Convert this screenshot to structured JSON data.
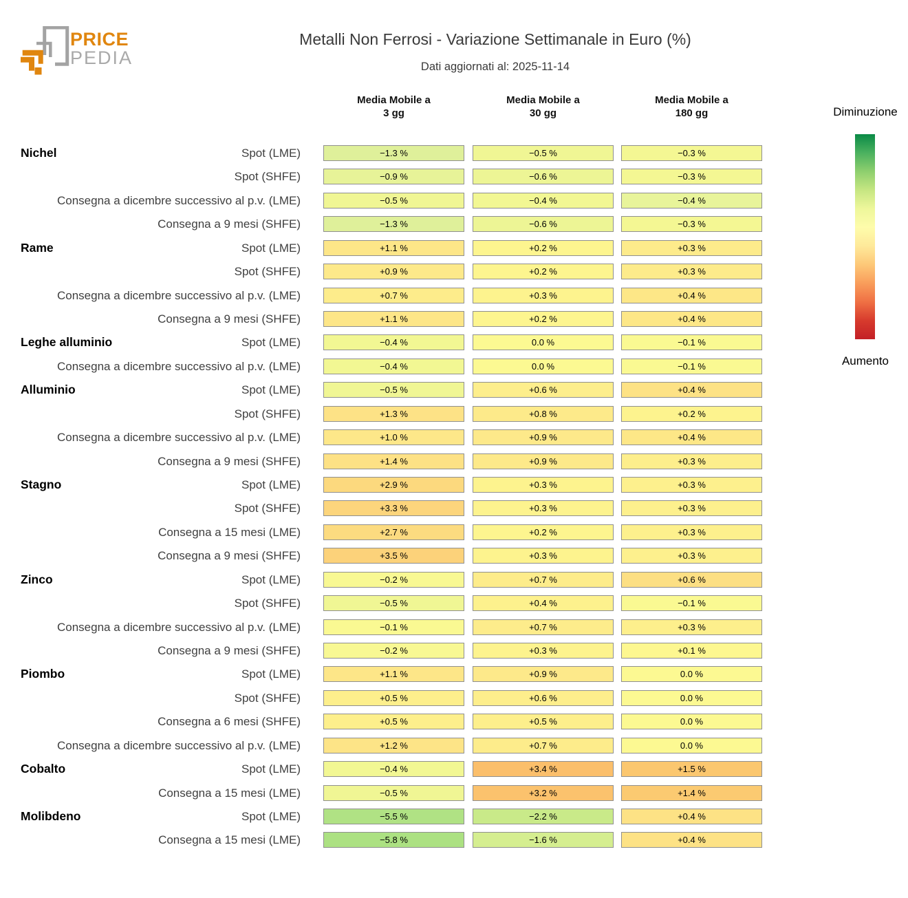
{
  "logo": {
    "brand_top": "PRICE",
    "brand_bottom": "PEDIA",
    "orange": "#e0860f",
    "gray": "#a3a3a3"
  },
  "header": {
    "title": "Metalli Non Ferrosi - Variazione Settimanale in Euro (%)",
    "subtitle": "Dati aggiornati al: 2025-11-14"
  },
  "column_headers": [
    {
      "line1": "Media Mobile a",
      "line2": "3 gg"
    },
    {
      "line1": "Media Mobile a",
      "line2": "30 gg"
    },
    {
      "line1": "Media Mobile a",
      "line2": "180 gg"
    }
  ],
  "legend": {
    "top_label": "Diminuzione",
    "bottom_label": "Aumento",
    "gradient_stops": [
      "#0a8a46",
      "#4bb15f",
      "#8ecf6e",
      "#c6e682",
      "#eef79b",
      "#fefcab",
      "#fee99a",
      "#fdc878",
      "#f99d5b",
      "#ef7044",
      "#d73b2d",
      "#c32026"
    ]
  },
  "chart_data": {
    "type": "heatmap",
    "title": "Metalli Non Ferrosi - Variazione Settimanale in Euro (%)",
    "subtitle": "Dati aggiornati al: 2025-11-14",
    "unit": "%",
    "columns": [
      "Media Mobile a 3 gg",
      "Media Mobile a 30 gg",
      "Media Mobile a 180 gg"
    ],
    "legend": {
      "top": "Diminuzione",
      "bottom": "Aumento"
    },
    "rows": [
      {
        "group": "Nichel",
        "label": "Spot (LME)",
        "values": [
          -1.3,
          -0.5,
          -0.3
        ],
        "display": [
          "−1.3 %",
          "−0.5 %",
          "−0.3 %"
        ],
        "colors": [
          "#dff09a",
          "#f0f694",
          "#f4f793"
        ]
      },
      {
        "label": "Spot (SHFE)",
        "values": [
          -0.9,
          -0.6,
          -0.3
        ],
        "display": [
          "−0.9 %",
          "−0.6 %",
          "−0.3 %"
        ],
        "colors": [
          "#e7f398",
          "#edf595",
          "#f4f793"
        ]
      },
      {
        "label": "Consegna a dicembre successivo al p.v. (LME)",
        "values": [
          -0.5,
          -0.4,
          -0.4
        ],
        "display": [
          "−0.5 %",
          "−0.4 %",
          "−0.4 %"
        ],
        "colors": [
          "#f0f694",
          "#f2f793",
          "#e8f49a"
        ]
      },
      {
        "label": "Consegna a 9 mesi (SHFE)",
        "values": [
          -1.3,
          -0.6,
          -0.3
        ],
        "display": [
          "−1.3 %",
          "−0.6 %",
          "−0.3 %"
        ],
        "colors": [
          "#dff09a",
          "#edf595",
          "#f4f793"
        ]
      },
      {
        "group": "Rame",
        "label": "Spot (LME)",
        "values": [
          1.1,
          0.2,
          0.3
        ],
        "display": [
          "+1.1 %",
          "+0.2 %",
          "+0.3 %"
        ],
        "colors": [
          "#fde688",
          "#fdf58f",
          "#fdeb8b"
        ]
      },
      {
        "label": "Spot (SHFE)",
        "values": [
          0.9,
          0.2,
          0.3
        ],
        "display": [
          "+0.9 %",
          "+0.2 %",
          "+0.3 %"
        ],
        "colors": [
          "#fde98a",
          "#fdf58f",
          "#fdeb8b"
        ]
      },
      {
        "label": "Consegna a dicembre successivo al p.v. (LME)",
        "values": [
          0.7,
          0.3,
          0.4
        ],
        "display": [
          "+0.7 %",
          "+0.3 %",
          "+0.4 %"
        ],
        "colors": [
          "#fdec8b",
          "#fdf38e",
          "#fde787"
        ]
      },
      {
        "label": "Consegna a 9 mesi (SHFE)",
        "values": [
          1.1,
          0.2,
          0.4
        ],
        "display": [
          "+1.1 %",
          "+0.2 %",
          "+0.4 %"
        ],
        "colors": [
          "#fde688",
          "#fdf58f",
          "#fde787"
        ]
      },
      {
        "group": "Leghe alluminio",
        "label": "Spot (LME)",
        "values": [
          -0.4,
          0.0,
          -0.1
        ],
        "display": [
          "−0.4 %",
          "0.0 %",
          "−0.1 %"
        ],
        "colors": [
          "#f2f793",
          "#fcf992",
          "#faf992"
        ]
      },
      {
        "label": "Consegna a dicembre successivo al p.v. (LME)",
        "values": [
          -0.4,
          0.0,
          -0.1
        ],
        "display": [
          "−0.4 %",
          "0.0 %",
          "−0.1 %"
        ],
        "colors": [
          "#f2f793",
          "#fcf992",
          "#faf992"
        ]
      },
      {
        "group": "Alluminio",
        "label": "Spot (LME)",
        "values": [
          -0.5,
          0.6,
          0.4
        ],
        "display": [
          "−0.5 %",
          "+0.6 %",
          "+0.4 %"
        ],
        "colors": [
          "#f0f694",
          "#fdee8c",
          "#fde285"
        ]
      },
      {
        "label": "Spot (SHFE)",
        "values": [
          1.3,
          0.8,
          0.2
        ],
        "display": [
          "+1.3 %",
          "+0.8 %",
          "+0.2 %"
        ],
        "colors": [
          "#fde286",
          "#fdea8a",
          "#fdf38e"
        ]
      },
      {
        "label": "Consegna a dicembre successivo al p.v. (LME)",
        "values": [
          1.0,
          0.9,
          0.4
        ],
        "display": [
          "+1.0 %",
          "+0.9 %",
          "+0.4 %"
        ],
        "colors": [
          "#fde789",
          "#fde98a",
          "#fde787"
        ]
      },
      {
        "label": "Consegna a 9 mesi (SHFE)",
        "values": [
          1.4,
          0.9,
          0.3
        ],
        "display": [
          "+1.4 %",
          "+0.9 %",
          "+0.3 %"
        ],
        "colors": [
          "#fde185",
          "#fde98a",
          "#fdee8c"
        ]
      },
      {
        "group": "Stagno",
        "label": "Spot (LME)",
        "values": [
          2.9,
          0.3,
          0.3
        ],
        "display": [
          "+2.9 %",
          "+0.3 %",
          "+0.3 %"
        ],
        "colors": [
          "#fcd97e",
          "#fdf38e",
          "#fdf08d"
        ]
      },
      {
        "label": "Spot (SHFE)",
        "values": [
          3.3,
          0.3,
          0.3
        ],
        "display": [
          "+3.3 %",
          "+0.3 %",
          "+0.3 %"
        ],
        "colors": [
          "#fcd57c",
          "#fdf38e",
          "#fdf08d"
        ]
      },
      {
        "label": "Consegna a 15 mesi (LME)",
        "values": [
          2.7,
          0.2,
          0.3
        ],
        "display": [
          "+2.7 %",
          "+0.2 %",
          "+0.3 %"
        ],
        "colors": [
          "#fcdb80",
          "#fdf58f",
          "#fdf08d"
        ]
      },
      {
        "label": "Consegna a 9 mesi (SHFE)",
        "values": [
          3.5,
          0.3,
          0.3
        ],
        "display": [
          "+3.5 %",
          "+0.3 %",
          "+0.3 %"
        ],
        "colors": [
          "#fcd27a",
          "#fdf38e",
          "#fdf08d"
        ]
      },
      {
        "group": "Zinco",
        "label": "Spot (LME)",
        "values": [
          -0.2,
          0.7,
          0.6
        ],
        "display": [
          "−0.2 %",
          "+0.7 %",
          "+0.6 %"
        ],
        "colors": [
          "#f8f893",
          "#fdec8b",
          "#fcdf83"
        ]
      },
      {
        "label": "Spot (SHFE)",
        "values": [
          -0.5,
          0.4,
          -0.1
        ],
        "display": [
          "−0.5 %",
          "+0.4 %",
          "−0.1 %"
        ],
        "colors": [
          "#f0f694",
          "#fdf18d",
          "#faf992"
        ]
      },
      {
        "label": "Consegna a dicembre successivo al p.v. (LME)",
        "values": [
          -0.1,
          0.7,
          0.3
        ],
        "display": [
          "−0.1 %",
          "+0.7 %",
          "+0.3 %"
        ],
        "colors": [
          "#faf992",
          "#fdec8b",
          "#fdef8c"
        ]
      },
      {
        "label": "Consegna a 9 mesi (SHFE)",
        "values": [
          -0.2,
          0.3,
          0.1
        ],
        "display": [
          "−0.2 %",
          "+0.3 %",
          "+0.1 %"
        ],
        "colors": [
          "#f8f893",
          "#fdf38e",
          "#fdf790"
        ]
      },
      {
        "group": "Piombo",
        "label": "Spot (LME)",
        "values": [
          1.1,
          0.9,
          0.0
        ],
        "display": [
          "+1.1 %",
          "+0.9 %",
          "0.0 %"
        ],
        "colors": [
          "#fde688",
          "#fde98a",
          "#fcf992"
        ]
      },
      {
        "label": "Spot (SHFE)",
        "values": [
          0.5,
          0.6,
          0.0
        ],
        "display": [
          "+0.5 %",
          "+0.6 %",
          "0.0 %"
        ],
        "colors": [
          "#fdef8c",
          "#fdee8c",
          "#fcf992"
        ]
      },
      {
        "label": "Consegna a 6 mesi (SHFE)",
        "values": [
          0.5,
          0.5,
          0.0
        ],
        "display": [
          "+0.5 %",
          "+0.5 %",
          "0.0 %"
        ],
        "colors": [
          "#fdef8c",
          "#fdef8c",
          "#fcf992"
        ]
      },
      {
        "label": "Consegna a dicembre successivo al p.v. (LME)",
        "values": [
          1.2,
          0.7,
          0.0
        ],
        "display": [
          "+1.2 %",
          "+0.7 %",
          "0.0 %"
        ],
        "colors": [
          "#fde487",
          "#fdec8b",
          "#fcf992"
        ]
      },
      {
        "group": "Cobalto",
        "label": "Spot (LME)",
        "values": [
          -0.4,
          3.4,
          1.5
        ],
        "display": [
          "−0.4 %",
          "+3.4 %",
          "+1.5 %"
        ],
        "colors": [
          "#f2f793",
          "#fbbf6b",
          "#fbc76f"
        ]
      },
      {
        "label": "Consegna a 15 mesi (LME)",
        "values": [
          -0.5,
          3.2,
          1.4
        ],
        "display": [
          "−0.5 %",
          "+3.2 %",
          "+1.4 %"
        ],
        "colors": [
          "#f0f694",
          "#fbc26d",
          "#fbca71"
        ]
      },
      {
        "group": "Molibdeno",
        "label": "Spot (LME)",
        "values": [
          -5.5,
          -2.2,
          0.4
        ],
        "display": [
          "−5.5 %",
          "−2.2 %",
          "+0.4 %"
        ],
        "colors": [
          "#b0e284",
          "#c9ea89",
          "#fde285"
        ]
      },
      {
        "label": "Consegna a 15 mesi (LME)",
        "values": [
          -5.8,
          -1.6,
          0.4
        ],
        "display": [
          "−5.8 %",
          "−1.6 %",
          "+0.4 %"
        ],
        "colors": [
          "#ace182",
          "#d5ee90",
          "#fde285"
        ]
      }
    ]
  }
}
